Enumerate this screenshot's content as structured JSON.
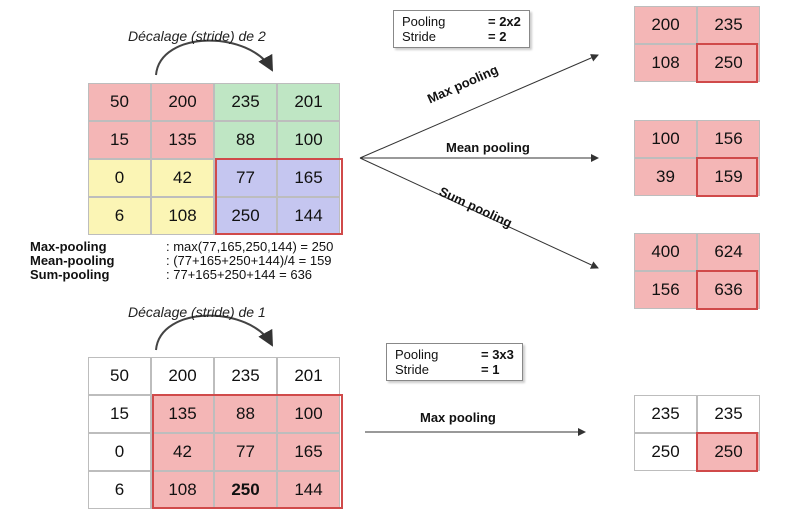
{
  "top": {
    "caption": "Décalage (stride) de 2",
    "matrix": [
      [
        "50",
        "200",
        "235",
        "201"
      ],
      [
        "15",
        "135",
        "88",
        "100"
      ],
      [
        "0",
        "42",
        "77",
        "165"
      ],
      [
        "6",
        "108",
        "250",
        "144"
      ]
    ],
    "params": {
      "pooling_label": "Pooling",
      "pooling_value": "= 2x2",
      "stride_label": "Stride",
      "stride_value": "= 2"
    },
    "formulas": [
      {
        "name": "Max-pooling",
        "expr": ": max(77,165,250,144) = 250"
      },
      {
        "name": "Mean-pooling",
        "expr": ": (77+165+250+144)/4 = 159"
      },
      {
        "name": "Sum-pooling",
        "expr": ": 77+165+250+144 = 636"
      }
    ],
    "arrows": {
      "max": "Max pooling",
      "mean": "Mean pooling",
      "sum": "Sum pooling"
    },
    "results": {
      "max": [
        [
          "200",
          "235"
        ],
        [
          "108",
          "250"
        ]
      ],
      "mean": [
        [
          "100",
          "156"
        ],
        [
          "39",
          "159"
        ]
      ],
      "sum": [
        [
          "400",
          "624"
        ],
        [
          "156",
          "636"
        ]
      ]
    }
  },
  "bottom": {
    "caption": "Décalage (stride) de 1",
    "matrix": [
      [
        "50",
        "200",
        "235",
        "201"
      ],
      [
        "15",
        "135",
        "88",
        "100"
      ],
      [
        "0",
        "42",
        "77",
        "165"
      ],
      [
        "6",
        "108",
        "250",
        "144"
      ]
    ],
    "params": {
      "pooling_label": "Pooling",
      "pooling_value": "= 3x3",
      "stride_label": "Stride",
      "stride_value": "= 1"
    },
    "arrow": "Max pooling",
    "result": [
      [
        "235",
        "235"
      ],
      [
        "250",
        "250"
      ]
    ]
  },
  "colors": {
    "red": "#f4b6b6",
    "green": "#bfe6c4",
    "yellow": "#fbf5b5",
    "blue": "#c5c6f0",
    "frame": "#d04a4a"
  }
}
